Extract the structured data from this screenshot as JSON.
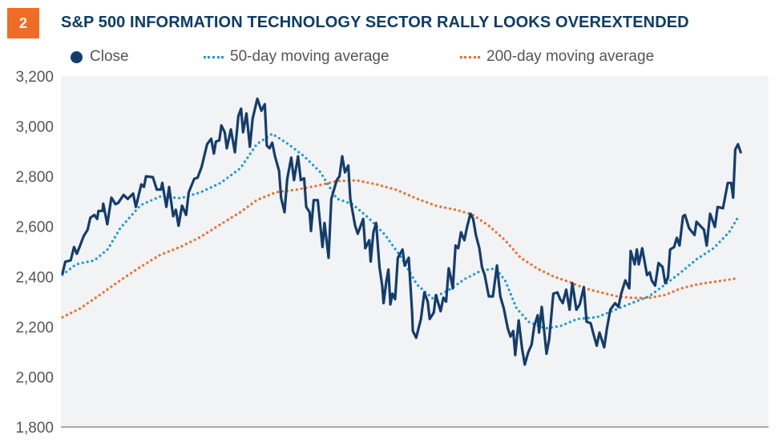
{
  "badge": {
    "number": "2",
    "color": "#f06c26"
  },
  "title": "S&P 500 INFORMATION TECHNOLOGY SECTOR RALLY LOOKS OVEREXTENDED",
  "legend": [
    {
      "label": "Close",
      "marker": "dot-icon",
      "color": "#143d6b"
    },
    {
      "label": "50-day moving average",
      "marker": "dotted-line-icon",
      "color": "#1a9ad9"
    },
    {
      "label": "200-day moving average",
      "marker": "dotted-line-icon",
      "color": "#f06c26"
    }
  ],
  "chart_data": {
    "type": "line",
    "title": "S&P 500 INFORMATION TECHNOLOGY SECTOR RALLY LOOKS OVEREXTENDED",
    "xlabel": "",
    "ylabel": "",
    "x_units": "fraction of displayed time range (no date ticks shown)",
    "xlim": [
      0,
      1
    ],
    "ylim": [
      1800,
      3200
    ],
    "yticks": [
      1800,
      2000,
      2200,
      2400,
      2600,
      2800,
      3000,
      3200
    ],
    "ytick_labels": [
      "1,800",
      "2,000",
      "2,200",
      "2,400",
      "2,600",
      "2,800",
      "3,000",
      "3,200"
    ],
    "grid": false,
    "legend_position": "top",
    "background": "#f2f3f5",
    "series": [
      {
        "name": "Close",
        "color": "#143d6b",
        "style": "solid",
        "points": [
          [
            0.0,
            2412
          ],
          [
            0.004,
            2459
          ],
          [
            0.012,
            2465
          ],
          [
            0.017,
            2518
          ],
          [
            0.021,
            2491
          ],
          [
            0.025,
            2518
          ],
          [
            0.031,
            2561
          ],
          [
            0.037,
            2587
          ],
          [
            0.041,
            2635
          ],
          [
            0.047,
            2646
          ],
          [
            0.051,
            2630
          ],
          [
            0.053,
            2662
          ],
          [
            0.059,
            2662
          ],
          [
            0.06,
            2691
          ],
          [
            0.066,
            2609
          ],
          [
            0.072,
            2715
          ],
          [
            0.078,
            2689
          ],
          [
            0.082,
            2694
          ],
          [
            0.09,
            2726
          ],
          [
            0.096,
            2710
          ],
          [
            0.104,
            2731
          ],
          [
            0.108,
            2678
          ],
          [
            0.116,
            2768
          ],
          [
            0.12,
            2758
          ],
          [
            0.123,
            2800
          ],
          [
            0.133,
            2797
          ],
          [
            0.139,
            2747
          ],
          [
            0.145,
            2747
          ],
          [
            0.147,
            2774
          ],
          [
            0.153,
            2678
          ],
          [
            0.157,
            2758
          ],
          [
            0.163,
            2641
          ],
          [
            0.167,
            2667
          ],
          [
            0.171,
            2603
          ],
          [
            0.176,
            2683
          ],
          [
            0.182,
            2646
          ],
          [
            0.186,
            2736
          ],
          [
            0.194,
            2790
          ],
          [
            0.199,
            2795
          ],
          [
            0.205,
            2838
          ],
          [
            0.213,
            2928
          ],
          [
            0.219,
            2950
          ],
          [
            0.223,
            2891
          ],
          [
            0.226,
            2939
          ],
          [
            0.231,
            2944
          ],
          [
            0.234,
            3003
          ],
          [
            0.239,
            2976
          ],
          [
            0.242,
            2912
          ],
          [
            0.248,
            2987
          ],
          [
            0.254,
            2896
          ],
          [
            0.259,
            3040
          ],
          [
            0.263,
            3070
          ],
          [
            0.266,
            2976
          ],
          [
            0.271,
            3051
          ],
          [
            0.276,
            2918
          ],
          [
            0.28,
            3030
          ],
          [
            0.287,
            3110
          ],
          [
            0.293,
            3062
          ],
          [
            0.298,
            3088
          ],
          [
            0.301,
            2923
          ],
          [
            0.305,
            2912
          ],
          [
            0.309,
            2934
          ],
          [
            0.313,
            2880
          ],
          [
            0.319,
            2822
          ],
          [
            0.322,
            2715
          ],
          [
            0.327,
            2657
          ],
          [
            0.331,
            2790
          ],
          [
            0.337,
            2875
          ],
          [
            0.341,
            2785
          ],
          [
            0.347,
            2880
          ],
          [
            0.351,
            2785
          ],
          [
            0.356,
            2792
          ],
          [
            0.359,
            2678
          ],
          [
            0.364,
            2657
          ],
          [
            0.366,
            2582
          ],
          [
            0.37,
            2705
          ],
          [
            0.376,
            2705
          ],
          [
            0.383,
            2518
          ],
          [
            0.386,
            2614
          ],
          [
            0.392,
            2475
          ],
          [
            0.396,
            2710
          ],
          [
            0.404,
            2785
          ],
          [
            0.408,
            2800
          ],
          [
            0.412,
            2880
          ],
          [
            0.416,
            2816
          ],
          [
            0.421,
            2843
          ],
          [
            0.424,
            2710
          ],
          [
            0.431,
            2603
          ],
          [
            0.435,
            2571
          ],
          [
            0.443,
            2630
          ],
          [
            0.446,
            2513
          ],
          [
            0.452,
            2545
          ],
          [
            0.454,
            2460
          ],
          [
            0.458,
            2577
          ],
          [
            0.462,
            2614
          ],
          [
            0.467,
            2438
          ],
          [
            0.471,
            2364
          ],
          [
            0.473,
            2294
          ],
          [
            0.477,
            2380
          ],
          [
            0.48,
            2428
          ],
          [
            0.483,
            2289
          ],
          [
            0.486,
            2332
          ],
          [
            0.49,
            2310
          ],
          [
            0.494,
            2475
          ],
          [
            0.501,
            2508
          ],
          [
            0.504,
            2444
          ],
          [
            0.51,
            2475
          ],
          [
            0.515,
            2258
          ],
          [
            0.516,
            2183
          ],
          [
            0.521,
            2156
          ],
          [
            0.528,
            2231
          ],
          [
            0.533,
            2337
          ],
          [
            0.538,
            2300
          ],
          [
            0.541,
            2231
          ],
          [
            0.547,
            2257
          ],
          [
            0.55,
            2326
          ],
          [
            0.557,
            2262
          ],
          [
            0.561,
            2316
          ],
          [
            0.565,
            2300
          ],
          [
            0.569,
            2433
          ],
          [
            0.572,
            2396
          ],
          [
            0.575,
            2353
          ],
          [
            0.579,
            2524
          ],
          [
            0.583,
            2513
          ],
          [
            0.587,
            2577
          ],
          [
            0.592,
            2545
          ],
          [
            0.596,
            2598
          ],
          [
            0.601,
            2651
          ],
          [
            0.605,
            2630
          ],
          [
            0.609,
            2566
          ],
          [
            0.614,
            2513
          ],
          [
            0.618,
            2438
          ],
          [
            0.622,
            2406
          ],
          [
            0.628,
            2321
          ],
          [
            0.634,
            2321
          ],
          [
            0.64,
            2444
          ],
          [
            0.645,
            2321
          ],
          [
            0.65,
            2273
          ],
          [
            0.656,
            2193
          ],
          [
            0.66,
            2161
          ],
          [
            0.664,
            2183
          ],
          [
            0.667,
            2087
          ],
          [
            0.672,
            2225
          ],
          [
            0.677,
            2113
          ],
          [
            0.681,
            2049
          ],
          [
            0.686,
            2097
          ],
          [
            0.691,
            2129
          ],
          [
            0.695,
            2204
          ],
          [
            0.7,
            2246
          ],
          [
            0.702,
            2177
          ],
          [
            0.706,
            2279
          ],
          [
            0.713,
            2092
          ],
          [
            0.717,
            2151
          ],
          [
            0.723,
            2332
          ],
          [
            0.729,
            2337
          ],
          [
            0.733,
            2310
          ],
          [
            0.737,
            2294
          ],
          [
            0.742,
            2348
          ],
          [
            0.747,
            2268
          ],
          [
            0.751,
            2374
          ],
          [
            0.757,
            2268
          ],
          [
            0.762,
            2289
          ],
          [
            0.768,
            2358
          ],
          [
            0.772,
            2220
          ],
          [
            0.778,
            2214
          ],
          [
            0.782,
            2172
          ],
          [
            0.787,
            2124
          ],
          [
            0.791,
            2177
          ],
          [
            0.798,
            2118
          ],
          [
            0.802,
            2193
          ],
          [
            0.807,
            2268
          ],
          [
            0.814,
            2294
          ],
          [
            0.819,
            2279
          ],
          [
            0.823,
            2332
          ],
          [
            0.829,
            2385
          ],
          [
            0.835,
            2353
          ],
          [
            0.837,
            2502
          ],
          [
            0.843,
            2449
          ],
          [
            0.846,
            2508
          ],
          [
            0.849,
            2449
          ],
          [
            0.854,
            2513
          ],
          [
            0.861,
            2406
          ],
          [
            0.865,
            2417
          ],
          [
            0.868,
            2385
          ],
          [
            0.873,
            2364
          ],
          [
            0.878,
            2454
          ],
          [
            0.884,
            2438
          ],
          [
            0.888,
            2374
          ],
          [
            0.892,
            2396
          ],
          [
            0.895,
            2508
          ],
          [
            0.901,
            2518
          ],
          [
            0.905,
            2555
          ],
          [
            0.909,
            2524
          ],
          [
            0.914,
            2641
          ],
          [
            0.917,
            2646
          ],
          [
            0.923,
            2593
          ],
          [
            0.931,
            2566
          ],
          [
            0.934,
            2619
          ],
          [
            0.945,
            2587
          ],
          [
            0.949,
            2524
          ],
          [
            0.954,
            2651
          ],
          [
            0.961,
            2598
          ],
          [
            0.965,
            2678
          ],
          [
            0.973,
            2673
          ],
          [
            0.98,
            2774
          ],
          [
            0.985,
            2774
          ],
          [
            0.988,
            2715
          ],
          [
            0.991,
            2907
          ],
          [
            0.995,
            2928
          ],
          [
            0.999,
            2896
          ]
        ]
      },
      {
        "name": "50-day moving average",
        "color": "#1a9ad9",
        "style": "dotted",
        "points": [
          [
            0.0,
            2407
          ],
          [
            0.02,
            2449
          ],
          [
            0.047,
            2465
          ],
          [
            0.067,
            2510
          ],
          [
            0.085,
            2593
          ],
          [
            0.115,
            2685
          ],
          [
            0.144,
            2720
          ],
          [
            0.174,
            2713
          ],
          [
            0.203,
            2736
          ],
          [
            0.233,
            2774
          ],
          [
            0.262,
            2832
          ],
          [
            0.286,
            2928
          ],
          [
            0.309,
            2970
          ],
          [
            0.333,
            2928
          ],
          [
            0.356,
            2880
          ],
          [
            0.38,
            2816
          ],
          [
            0.404,
            2711
          ],
          [
            0.427,
            2689
          ],
          [
            0.451,
            2634
          ],
          [
            0.475,
            2567
          ],
          [
            0.498,
            2481
          ],
          [
            0.522,
            2369
          ],
          [
            0.545,
            2314
          ],
          [
            0.569,
            2346
          ],
          [
            0.593,
            2391
          ],
          [
            0.616,
            2423
          ],
          [
            0.638,
            2433
          ],
          [
            0.652,
            2385
          ],
          [
            0.669,
            2273
          ],
          [
            0.687,
            2219
          ],
          [
            0.711,
            2193
          ],
          [
            0.734,
            2203
          ],
          [
            0.758,
            2231
          ],
          [
            0.787,
            2238
          ],
          [
            0.811,
            2264
          ],
          [
            0.84,
            2296
          ],
          [
            0.864,
            2321
          ],
          [
            0.888,
            2369
          ],
          [
            0.911,
            2417
          ],
          [
            0.935,
            2471
          ],
          [
            0.959,
            2513
          ],
          [
            0.982,
            2577
          ],
          [
            0.996,
            2641
          ]
        ]
      },
      {
        "name": "200-day moving average",
        "color": "#f06c26",
        "style": "dotted",
        "points": [
          [
            0.0,
            2238
          ],
          [
            0.026,
            2273
          ],
          [
            0.055,
            2327
          ],
          [
            0.085,
            2385
          ],
          [
            0.115,
            2439
          ],
          [
            0.144,
            2487
          ],
          [
            0.174,
            2519
          ],
          [
            0.203,
            2558
          ],
          [
            0.233,
            2609
          ],
          [
            0.262,
            2657
          ],
          [
            0.286,
            2705
          ],
          [
            0.315,
            2737
          ],
          [
            0.345,
            2747
          ],
          [
            0.374,
            2762
          ],
          [
            0.404,
            2781
          ],
          [
            0.433,
            2784
          ],
          [
            0.463,
            2768
          ],
          [
            0.492,
            2746
          ],
          [
            0.522,
            2711
          ],
          [
            0.551,
            2682
          ],
          [
            0.581,
            2666
          ],
          [
            0.604,
            2647
          ],
          [
            0.628,
            2603
          ],
          [
            0.652,
            2545
          ],
          [
            0.675,
            2475
          ],
          [
            0.699,
            2433
          ],
          [
            0.723,
            2401
          ],
          [
            0.746,
            2379
          ],
          [
            0.77,
            2353
          ],
          [
            0.793,
            2337
          ],
          [
            0.817,
            2321
          ],
          [
            0.841,
            2315
          ],
          [
            0.864,
            2315
          ],
          [
            0.888,
            2327
          ],
          [
            0.911,
            2353
          ],
          [
            0.935,
            2369
          ],
          [
            0.959,
            2379
          ],
          [
            0.982,
            2388
          ],
          [
            0.996,
            2394
          ]
        ]
      }
    ]
  }
}
